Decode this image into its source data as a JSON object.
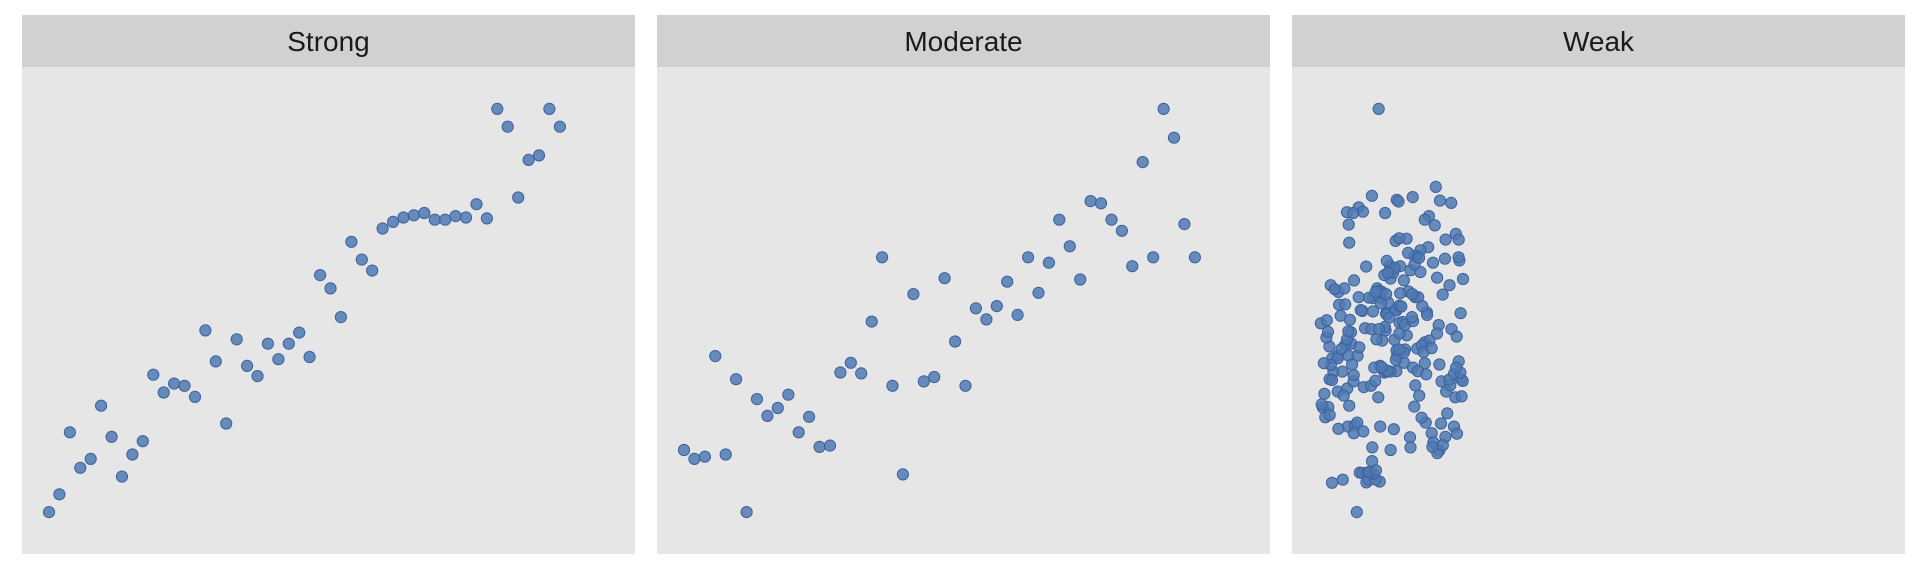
{
  "colors": {
    "point_fill": "#4f79b0",
    "point_stroke": "#3c62a0",
    "panel_bg": "#e6e6e6",
    "strip_bg": "#d1d1d1",
    "strip_text": "#1a1a1a"
  },
  "chart_data": [
    {
      "type": "scatter",
      "panel": "Strong",
      "xlim": [
        0,
        54
      ],
      "ylim": [
        0,
        1
      ],
      "grid": false,
      "points": [
        [
          0.0,
          0.045
        ],
        [
          1.0,
          0.085
        ],
        [
          2.0,
          0.225
        ],
        [
          3.0,
          0.145
        ],
        [
          4.0,
          0.165
        ],
        [
          5.0,
          0.285
        ],
        [
          6.0,
          0.215
        ],
        [
          7.0,
          0.125
        ],
        [
          8.0,
          0.175
        ],
        [
          9.0,
          0.205
        ],
        [
          10.0,
          0.355
        ],
        [
          11.0,
          0.315
        ],
        [
          12.0,
          0.335
        ],
        [
          13.0,
          0.33
        ],
        [
          14.0,
          0.305
        ],
        [
          15.0,
          0.455
        ],
        [
          16.0,
          0.385
        ],
        [
          17.0,
          0.245
        ],
        [
          18.0,
          0.435
        ],
        [
          19.0,
          0.375
        ],
        [
          20.0,
          0.352
        ],
        [
          21.0,
          0.425
        ],
        [
          22.0,
          0.39
        ],
        [
          23.0,
          0.425
        ],
        [
          24.0,
          0.45
        ],
        [
          25.0,
          0.395
        ],
        [
          26.0,
          0.58
        ],
        [
          27.0,
          0.55
        ],
        [
          28.0,
          0.485
        ],
        [
          29.0,
          0.655
        ],
        [
          30.0,
          0.615
        ],
        [
          31.0,
          0.59
        ],
        [
          32.0,
          0.685
        ],
        [
          33.0,
          0.7
        ],
        [
          34.0,
          0.71
        ],
        [
          35.0,
          0.715
        ],
        [
          36.0,
          0.72
        ],
        [
          37.0,
          0.705
        ],
        [
          38.0,
          0.705
        ],
        [
          39.0,
          0.713
        ],
        [
          40.0,
          0.71
        ],
        [
          41.0,
          0.74
        ],
        [
          42.0,
          0.708
        ],
        [
          43.0,
          0.955
        ],
        [
          44.0,
          0.915
        ],
        [
          45.0,
          0.755
        ],
        [
          46.0,
          0.84
        ],
        [
          47.0,
          0.85
        ],
        [
          48.0,
          0.955
        ],
        [
          49.0,
          0.915
        ]
      ]
    },
    {
      "type": "scatter",
      "panel": "Moderate",
      "xlim": [
        0,
        54
      ],
      "ylim": [
        0,
        1
      ],
      "grid": false,
      "points": [
        [
          0.0,
          0.185
        ],
        [
          1.0,
          0.165
        ],
        [
          2.0,
          0.17
        ],
        [
          3.0,
          0.397
        ],
        [
          4.0,
          0.175
        ],
        [
          5.0,
          0.345
        ],
        [
          6.0,
          0.045
        ],
        [
          7.0,
          0.3
        ],
        [
          8.0,
          0.262
        ],
        [
          9.0,
          0.28
        ],
        [
          10.0,
          0.31
        ],
        [
          11.0,
          0.225
        ],
        [
          12.0,
          0.26
        ],
        [
          13.0,
          0.192
        ],
        [
          14.0,
          0.195
        ],
        [
          15.0,
          0.36
        ],
        [
          16.0,
          0.382
        ],
        [
          17.0,
          0.358
        ],
        [
          18.0,
          0.475
        ],
        [
          19.0,
          0.62
        ],
        [
          20.0,
          0.33
        ],
        [
          21.0,
          0.13
        ],
        [
          22.0,
          0.537
        ],
        [
          23.0,
          0.34
        ],
        [
          24.0,
          0.35
        ],
        [
          25.0,
          0.573
        ],
        [
          26.0,
          0.43
        ],
        [
          27.0,
          0.33
        ],
        [
          28.0,
          0.505
        ],
        [
          29.0,
          0.48
        ],
        [
          30.0,
          0.51
        ],
        [
          31.0,
          0.565
        ],
        [
          32.0,
          0.49
        ],
        [
          33.0,
          0.62
        ],
        [
          34.0,
          0.54
        ],
        [
          35.0,
          0.608
        ],
        [
          36.0,
          0.705
        ],
        [
          37.0,
          0.645
        ],
        [
          38.0,
          0.57
        ],
        [
          39.0,
          0.747
        ],
        [
          40.0,
          0.742
        ],
        [
          41.0,
          0.705
        ],
        [
          42.0,
          0.68
        ],
        [
          43.0,
          0.6
        ],
        [
          44.0,
          0.835
        ],
        [
          45.0,
          0.62
        ],
        [
          46.0,
          0.955
        ],
        [
          47.0,
          0.89
        ],
        [
          48.0,
          0.695
        ],
        [
          49.0,
          0.62
        ]
      ]
    },
    {
      "type": "scatter",
      "panel": "Weak",
      "xlim": [
        0,
        54
      ],
      "ylim": [
        0,
        1
      ],
      "grid": false,
      "points": [
        [
          1.0,
          0.419
        ],
        [
          2.77,
          0.238
        ],
        [
          1.27,
          0.392
        ],
        [
          0.71,
          0.439
        ],
        [
          1.02,
          0.345
        ],
        [
          3.44,
          0.241
        ],
        [
          2.84,
          0.398
        ],
        [
          0.37,
          0.281
        ],
        [
          1.8,
          0.317
        ],
        [
          0.89,
          0.282
        ],
        [
          3.66,
          0.247
        ],
        [
          1.39,
          0.361
        ],
        [
          2.9,
          0.285
        ],
        [
          3.34,
          0.223
        ],
        [
          2.7,
          0.324
        ],
        [
          1.82,
          0.399
        ],
        [
          3.11,
          0.425
        ],
        [
          0.17,
          0.471
        ],
        [
          2.53,
          0.423
        ],
        [
          3.7,
          0.398
        ],
        [
          1.25,
          0.343
        ],
        [
          1.86,
          0.233
        ],
        [
          2.37,
          0.308
        ],
        [
          0.6,
          0.259
        ],
        [
          1.03,
          0.264
        ],
        [
          4.25,
          0.227
        ],
        [
          0.52,
          0.312
        ],
        [
          2.07,
          0.488
        ],
        [
          0.75,
          0.478
        ],
        [
          4.42,
          0.46
        ],
        [
          0.86,
          0.452
        ],
        [
          1.79,
          0.392
        ],
        [
          2.16,
          0.413
        ],
        [
          3.31,
          0.34
        ],
        [
          3.87,
          0.417
        ],
        [
          1.25,
          0.111
        ],
        [
          2.28,
          0.118
        ],
        [
          4.3,
          0.327
        ],
        [
          3.33,
          0.354
        ],
        [
          1.14,
          0.377
        ],
        [
          2.96,
          0.479
        ],
        [
          1.93,
          0.513
        ],
        [
          4.16,
          0.499
        ],
        [
          2.51,
          0.514
        ],
        [
          1.12,
          0.557
        ],
        [
          2.69,
          0.435
        ],
        [
          0.26,
          0.288
        ],
        [
          4.99,
          0.33
        ],
        [
          2.24,
          0.362
        ],
        [
          0.47,
          0.381
        ],
        [
          1.86,
          0.542
        ],
        [
          3.36,
          0.568
        ],
        [
          2.9,
          0.653
        ],
        [
          2.69,
          0.722
        ],
        [
          3.81,
          0.733
        ],
        [
          5.07,
          0.759
        ],
        [
          4.53,
          0.599
        ],
        [
          5.17,
          0.528
        ],
        [
          4.81,
          0.529
        ],
        [
          3.81,
          0.53
        ],
        [
          4.01,
          0.501
        ],
        [
          1.52,
          0.548
        ],
        [
          3.06,
          0.451
        ],
        [
          3.17,
          0.378
        ],
        [
          2.81,
          0.453
        ],
        [
          6.44,
          0.493
        ],
        [
          8.17,
          0.382
        ],
        [
          5.39,
          0.341
        ],
        [
          5.69,
          0.304
        ],
        [
          6.06,
          0.432
        ],
        [
          7.24,
          0.434
        ],
        [
          6.25,
          0.36
        ],
        [
          6.39,
          0.455
        ],
        [
          7.41,
          0.363
        ],
        [
          6.84,
          0.362
        ],
        [
          7.43,
          0.41
        ],
        [
          8.25,
          0.412
        ],
        [
          7.41,
          0.5
        ],
        [
          7.73,
          0.472
        ],
        [
          6.46,
          0.362
        ],
        [
          8.42,
          0.444
        ],
        [
          6.49,
          0.491
        ],
        [
          6.57,
          0.364
        ],
        [
          5.86,
          0.375
        ],
        [
          5.3,
          0.371
        ],
        [
          8.04,
          0.474
        ],
        [
          6.63,
          0.518
        ],
        [
          7.31,
          0.5
        ],
        [
          5.84,
          0.529
        ],
        [
          6.86,
          0.572
        ],
        [
          7.14,
          0.593
        ],
        [
          7.71,
          0.511
        ],
        [
          6.33,
          0.463
        ],
        [
          7.89,
          0.509
        ],
        [
          3.91,
          0.134
        ],
        [
          4.16,
          0.133
        ],
        [
          4.55,
          0.112
        ],
        [
          4.62,
          0.134
        ],
        [
          4.76,
          0.118
        ],
        [
          5.09,
          0.16
        ],
        [
          5.87,
          0.238
        ],
        [
          5.11,
          0.191
        ],
        [
          6.87,
          0.185
        ],
        [
          7.17,
          0.232
        ],
        [
          5.82,
          0.114
        ],
        [
          5.43,
          0.118
        ],
        [
          5.2,
          0.132
        ],
        [
          4.81,
          0.136
        ],
        [
          5.47,
          0.139
        ],
        [
          3.63,
          0.045
        ],
        [
          5.74,
          0.545
        ],
        [
          6.03,
          0.542
        ],
        [
          5.51,
          0.435
        ],
        [
          5.04,
          0.458
        ],
        [
          6.03,
          0.372
        ],
        [
          5.75,
          0.458
        ],
        [
          5.95,
          0.516
        ],
        [
          7.12,
          0.585
        ],
        [
          7.48,
          0.397
        ],
        [
          5.58,
          0.55
        ],
        [
          5.69,
          0.543
        ],
        [
          6.44,
          0.537
        ],
        [
          6.82,
          0.601
        ],
        [
          7.38,
          0.389
        ],
        [
          8.13,
          0.405
        ],
        [
          8.25,
          0.468
        ],
        [
          7.67,
          0.412
        ],
        [
          6.74,
          0.484
        ],
        [
          7.7,
          0.448
        ],
        [
          5.18,
          0.498
        ],
        [
          8.14,
          0.568
        ],
        [
          8.78,
          0.591
        ],
        [
          9.42,
          0.624
        ],
        [
          9.73,
          0.587
        ],
        [
          9.02,
          0.476
        ],
        [
          10.35,
          0.496
        ],
        [
          8.92,
          0.485
        ],
        [
          11.33,
          0.574
        ],
        [
          11.48,
          0.467
        ],
        [
          9.43,
          0.414
        ],
        [
          10.15,
          0.428
        ],
        [
          10.59,
          0.432
        ],
        [
          9.02,
          0.371
        ],
        [
          9.87,
          0.421
        ],
        [
          9.48,
          0.363
        ],
        [
          10.37,
          0.49
        ],
        [
          10.02,
          0.406
        ],
        [
          11.32,
          0.448
        ],
        [
          10.8,
          0.415
        ],
        [
          9.24,
          0.331
        ],
        [
          10.28,
          0.356
        ],
        [
          11.75,
          0.34
        ],
        [
          10.15,
          0.381
        ],
        [
          11.55,
          0.378
        ],
        [
          12.2,
          0.317
        ],
        [
          12.59,
          0.331
        ],
        [
          12.5,
          0.344
        ],
        [
          13.62,
          0.345
        ],
        [
          13.07,
          0.304
        ],
        [
          13.78,
          0.341
        ],
        [
          13.68,
          0.306
        ],
        [
          12.95,
          0.357
        ],
        [
          12.71,
          0.458
        ],
        [
          11.86,
          0.536
        ],
        [
          13.21,
          0.441
        ],
        [
          13.58,
          0.494
        ],
        [
          13.4,
          0.385
        ],
        [
          13.55,
          0.36
        ],
        [
          13.15,
          0.371
        ],
        [
          12.3,
          0.268
        ],
        [
          12.95,
          0.238
        ],
        [
          12.12,
          0.215
        ],
        [
          11.7,
          0.245
        ],
        [
          13.23,
          0.222
        ],
        [
          10.81,
          0.223
        ],
        [
          10.97,
          0.202
        ],
        [
          10.23,
          0.247
        ],
        [
          9.84,
          0.258
        ],
        [
          9.61,
          0.308
        ],
        [
          9.14,
          0.283
        ],
        [
          8.73,
          0.214
        ],
        [
          8.78,
          0.191
        ],
        [
          11.53,
          0.184
        ],
        [
          11.35,
          0.178
        ],
        [
          11.87,
          0.196
        ],
        [
          10.88,
          0.192
        ],
        [
          12.52,
          0.557
        ],
        [
          12.09,
          0.617
        ],
        [
          13.47,
          0.613
        ],
        [
          13.81,
          0.571
        ],
        [
          13.39,
          0.62
        ],
        [
          12.14,
          0.66
        ],
        [
          10.93,
          0.608
        ],
        [
          10.47,
          0.643
        ],
        [
          9.73,
          0.636
        ],
        [
          9.23,
          0.53
        ],
        [
          9.51,
          0.53
        ],
        [
          11.11,
          0.692
        ],
        [
          10.54,
          0.713
        ],
        [
          11.61,
          0.748
        ],
        [
          13.13,
          0.673
        ],
        [
          13.4,
          0.66
        ],
        [
          12.68,
          0.743
        ],
        [
          8.99,
          0.756
        ],
        [
          11.2,
          0.779
        ],
        [
          9.15,
          0.623
        ],
        [
          8.55,
          0.63
        ],
        [
          8.4,
          0.662
        ],
        [
          7.35,
          0.657
        ],
        [
          7.69,
          0.663
        ],
        [
          8.59,
          0.543
        ],
        [
          8.95,
          0.537
        ],
        [
          9.16,
          0.604
        ],
        [
          9.6,
          0.619
        ],
        [
          7.46,
          0.75
        ],
        [
          6.27,
          0.58
        ],
        [
          5.44,
          0.542
        ],
        [
          7.79,
          0.539
        ],
        [
          2.85,
          0.694
        ],
        [
          4.21,
          0.723
        ],
        [
          3.28,
          0.72
        ],
        [
          2.44,
          0.55
        ],
        [
          7.63,
          0.746
        ],
        [
          7.78,
          0.6
        ],
        [
          6.34,
          0.72
        ],
        [
          6.5,
          0.612
        ],
        [
          9.91,
          0.51
        ],
        [
          7.26,
          0.596
        ],
        [
          6.62,
          0.585
        ],
        [
          10.15,
          0.705
        ],
        [
          5.73,
          0.955
        ]
      ]
    }
  ],
  "panels": [
    {
      "label": "Strong"
    },
    {
      "label": "Moderate"
    },
    {
      "label": "Weak"
    }
  ]
}
